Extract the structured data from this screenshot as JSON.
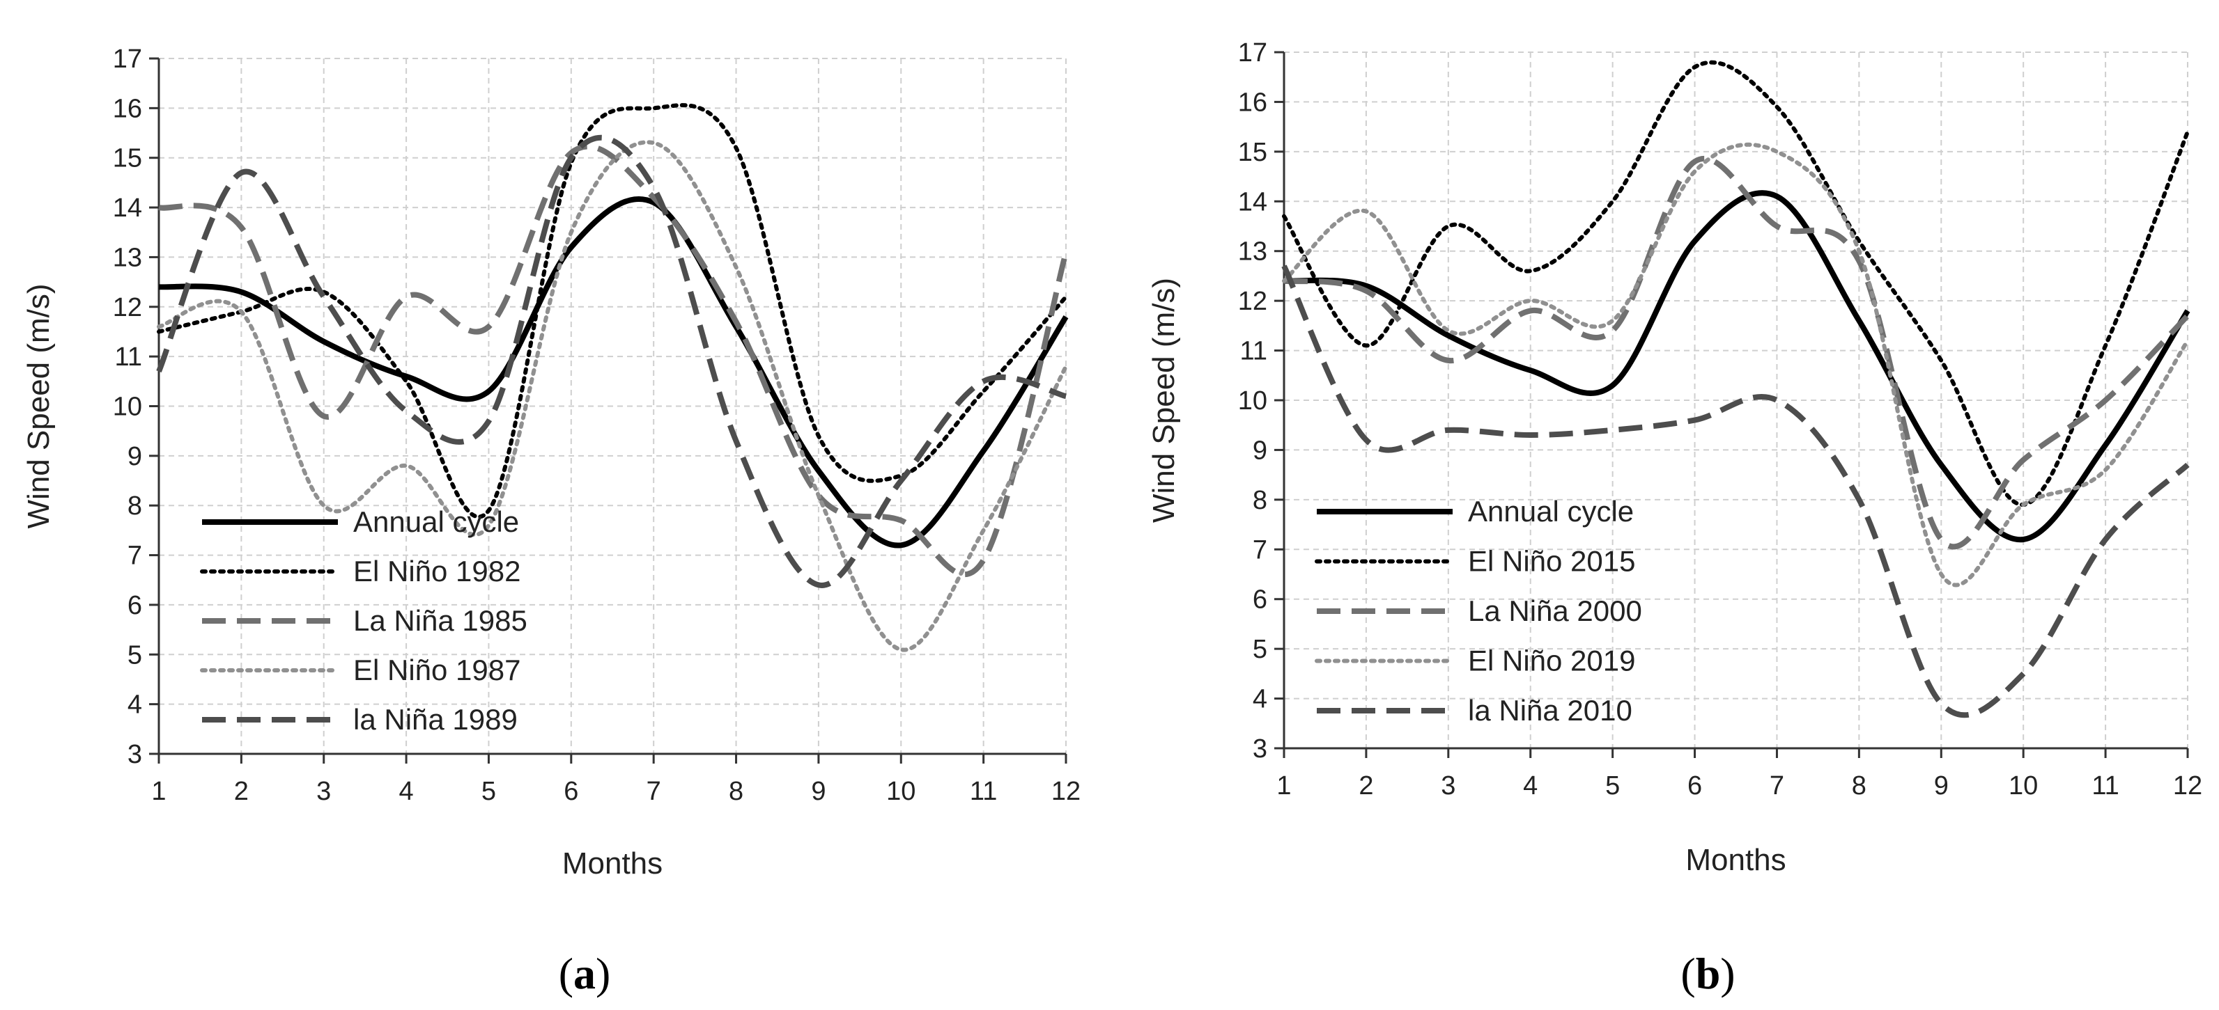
{
  "chart_data": [
    {
      "type": "line",
      "panel_label": "a",
      "xlabel": "Months",
      "ylabel": "Wind Speed (m/s)",
      "xlim": [
        1,
        12
      ],
      "ylim": [
        3,
        17
      ],
      "x_ticks": [
        1,
        2,
        3,
        4,
        5,
        6,
        7,
        8,
        9,
        10,
        11,
        12
      ],
      "y_ticks": [
        3,
        4,
        5,
        6,
        7,
        8,
        9,
        10,
        11,
        12,
        13,
        14,
        15,
        16,
        17
      ],
      "grid": true,
      "legend_position": "bottom-left",
      "x": [
        1,
        2,
        3,
        4,
        5,
        6,
        7,
        8,
        9,
        10,
        11,
        12
      ],
      "series": [
        {
          "name": "Annual cycle",
          "style": "solid",
          "color": "#000000",
          "values": [
            12.4,
            12.3,
            11.3,
            10.6,
            10.3,
            13.2,
            14.1,
            11.6,
            8.7,
            7.2,
            9.1,
            11.8
          ]
        },
        {
          "name": "El Niño 1982",
          "style": "dotted",
          "color": "#000000",
          "values": [
            11.5,
            11.9,
            12.3,
            10.5,
            7.9,
            14.9,
            16.0,
            15.2,
            9.4,
            8.6,
            10.3,
            12.2
          ]
        },
        {
          "name": "La Niña 1985",
          "style": "dashed",
          "color": "#707070",
          "values": [
            14.0,
            13.6,
            9.8,
            12.2,
            11.6,
            15.1,
            14.2,
            11.7,
            8.2,
            7.7,
            6.9,
            13.1
          ]
        },
        {
          "name": "El Niño 1987",
          "style": "dotted",
          "color": "#909090",
          "values": [
            11.6,
            11.9,
            8.0,
            8.8,
            7.6,
            13.5,
            15.3,
            12.8,
            8.2,
            5.1,
            7.5,
            10.8
          ]
        },
        {
          "name": "la Niña 1989",
          "style": "dashed",
          "color": "#4d4d4d",
          "values": [
            10.7,
            14.7,
            12.2,
            9.9,
            9.7,
            15.0,
            14.4,
            9.3,
            6.4,
            8.5,
            10.5,
            10.2
          ]
        }
      ]
    },
    {
      "type": "line",
      "panel_label": "b",
      "xlabel": "Months",
      "ylabel": "Wind Speed (m/s)",
      "xlim": [
        1,
        12
      ],
      "ylim": [
        3,
        17
      ],
      "x_ticks": [
        1,
        2,
        3,
        4,
        5,
        6,
        7,
        8,
        9,
        10,
        11,
        12
      ],
      "y_ticks": [
        3,
        4,
        5,
        6,
        7,
        8,
        9,
        10,
        11,
        12,
        13,
        14,
        15,
        16,
        17
      ],
      "grid": true,
      "legend_position": "bottom-left",
      "x": [
        1,
        2,
        3,
        4,
        5,
        6,
        7,
        8,
        9,
        10,
        11,
        12
      ],
      "series": [
        {
          "name": "Annual cycle",
          "style": "solid",
          "color": "#000000",
          "values": [
            12.4,
            12.3,
            11.3,
            10.6,
            10.3,
            13.2,
            14.1,
            11.6,
            8.7,
            7.2,
            9.1,
            11.8
          ]
        },
        {
          "name": "El Niño 2015",
          "style": "dotted",
          "color": "#000000",
          "values": [
            13.7,
            11.1,
            13.5,
            12.6,
            14.0,
            16.7,
            15.9,
            13.2,
            10.8,
            7.9,
            11.1,
            15.4
          ]
        },
        {
          "name": "La Niña 2000",
          "style": "dashed",
          "color": "#707070",
          "values": [
            12.4,
            12.2,
            10.8,
            11.8,
            11.4,
            14.8,
            13.5,
            12.8,
            7.2,
            8.8,
            10.0,
            11.7
          ]
        },
        {
          "name": "El Niño 2019",
          "style": "dotted",
          "color": "#909090",
          "values": [
            12.4,
            13.8,
            11.4,
            12.0,
            11.6,
            14.6,
            15.0,
            13.0,
            6.5,
            7.9,
            8.6,
            11.2
          ]
        },
        {
          "name": "la Niña 2010",
          "style": "dashed",
          "color": "#4d4d4d",
          "values": [
            12.7,
            9.2,
            9.4,
            9.3,
            9.4,
            9.6,
            10.0,
            8.0,
            3.9,
            4.5,
            7.2,
            8.7
          ]
        }
      ]
    }
  ]
}
